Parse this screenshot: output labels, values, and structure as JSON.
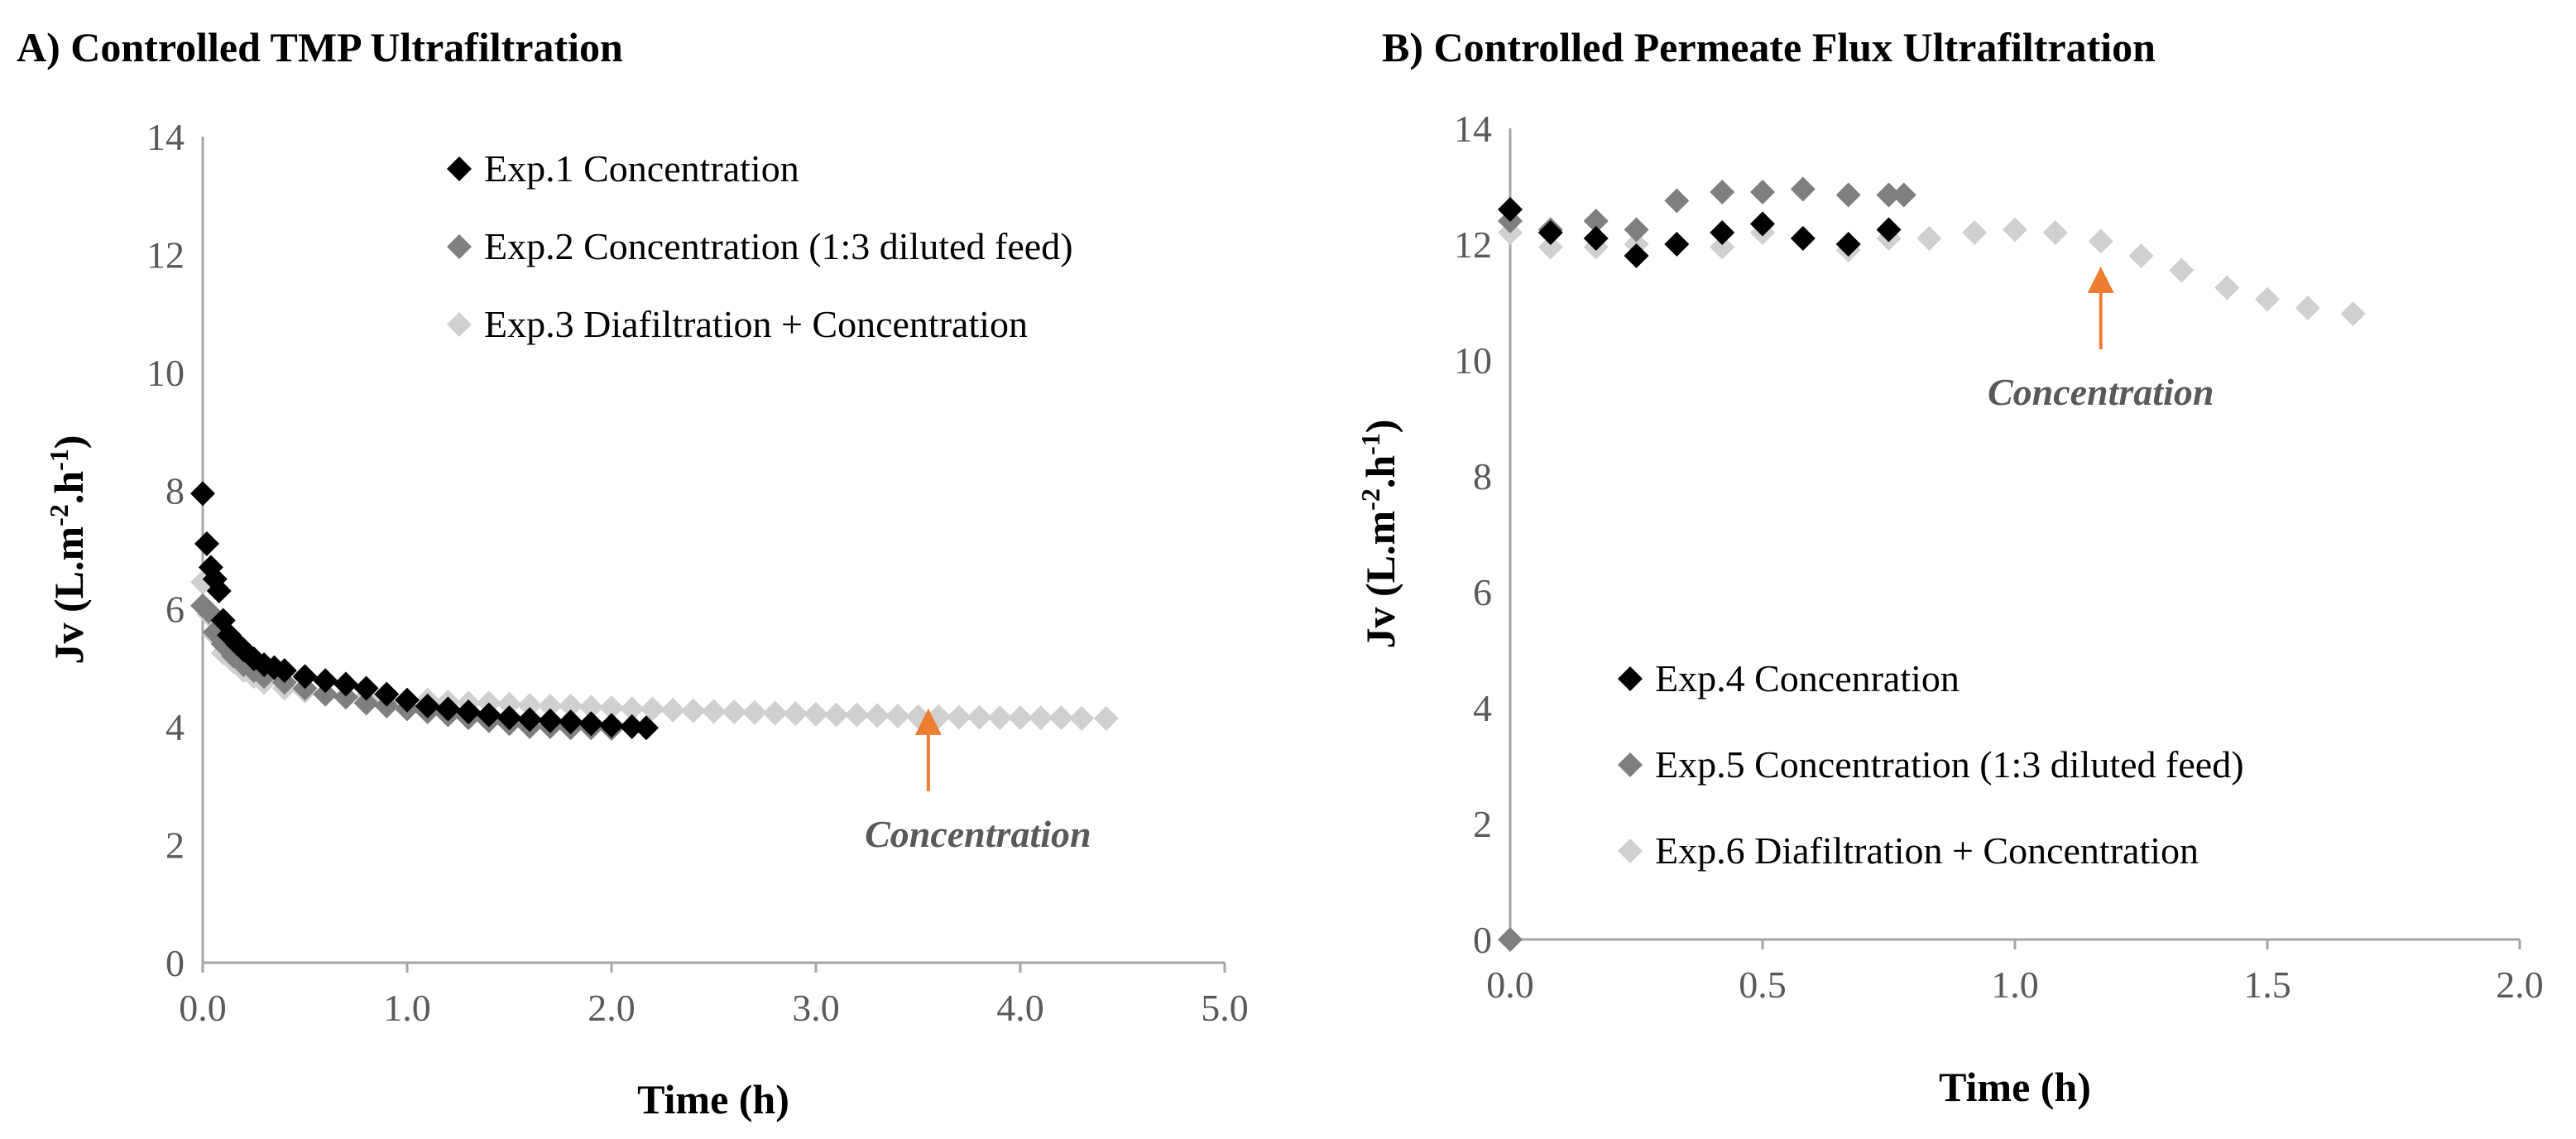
{
  "chart_data": [
    {
      "type": "scatter",
      "title": "A) Controlled TMP Ultrafiltration",
      "xlabel": "Time (h)",
      "ylabel": "Jv (L.m",
      "ylabel_sup1": "-2",
      "ylabel_mid": ".h",
      "ylabel_sup2": "-1",
      "ylabel_end": ")",
      "xlim": [
        0,
        5
      ],
      "ylim": [
        0,
        14
      ],
      "xticks": [
        "0.0",
        "1.0",
        "2.0",
        "3.0",
        "4.0",
        "5.0"
      ],
      "yticks": [
        "0",
        "2",
        "4",
        "6",
        "8",
        "10",
        "12",
        "14"
      ],
      "legend_position": "top-right",
      "annotation": {
        "text": "Concentration",
        "x": 3.55,
        "y": 4.0,
        "color": "#ed7d31"
      },
      "series": [
        {
          "name": "Exp.1 Concentration",
          "color": "#000000",
          "x": [
            0.0,
            0.02,
            0.04,
            0.06,
            0.08,
            0.1,
            0.13,
            0.17,
            0.2,
            0.25,
            0.3,
            0.35,
            0.4,
            0.5,
            0.6,
            0.7,
            0.8,
            0.9,
            1.0,
            1.1,
            1.2,
            1.3,
            1.4,
            1.5,
            1.6,
            1.7,
            1.8,
            1.9,
            2.0,
            2.1,
            2.17
          ],
          "y": [
            7.95,
            7.1,
            6.7,
            6.5,
            6.3,
            5.8,
            5.55,
            5.4,
            5.3,
            5.15,
            5.05,
            5.0,
            4.95,
            4.85,
            4.78,
            4.72,
            4.65,
            4.55,
            4.45,
            4.35,
            4.3,
            4.25,
            4.2,
            4.15,
            4.12,
            4.1,
            4.08,
            4.05,
            4.02,
            4.0,
            3.98
          ]
        },
        {
          "name": "Exp.2 Concentration (1:3 diluted feed)",
          "color": "#7f7f7f",
          "x": [
            0.0,
            0.03,
            0.06,
            0.1,
            0.15,
            0.2,
            0.25,
            0.3,
            0.4,
            0.5,
            0.6,
            0.7,
            0.8,
            0.9,
            1.0,
            1.1,
            1.2,
            1.3,
            1.4,
            1.5,
            1.6,
            1.7,
            1.8,
            1.9,
            2.0
          ],
          "y": [
            6.05,
            5.95,
            5.6,
            5.4,
            5.2,
            5.05,
            4.95,
            4.85,
            4.75,
            4.65,
            4.55,
            4.5,
            4.4,
            4.35,
            4.3,
            4.25,
            4.2,
            4.15,
            4.1,
            4.05,
            4.0,
            4.0,
            3.98,
            3.98,
            3.97
          ]
        },
        {
          "name": "Exp.3 Diafiltration + Concentration",
          "color": "#d0d0d0",
          "x": [
            0.0,
            0.03,
            0.06,
            0.1,
            0.15,
            0.2,
            0.25,
            0.3,
            0.4,
            0.5,
            0.6,
            0.7,
            0.8,
            0.9,
            1.0,
            1.1,
            1.2,
            1.3,
            1.4,
            1.5,
            1.6,
            1.7,
            1.8,
            1.9,
            2.0,
            2.1,
            2.2,
            2.3,
            2.4,
            2.5,
            2.6,
            2.7,
            2.8,
            2.9,
            3.0,
            3.1,
            3.2,
            3.3,
            3.4,
            3.5,
            3.6,
            3.7,
            3.8,
            3.9,
            4.0,
            4.1,
            4.2,
            4.3,
            4.42
          ],
          "y": [
            6.45,
            5.9,
            5.55,
            5.25,
            5.1,
            4.95,
            4.85,
            4.75,
            4.65,
            4.6,
            4.55,
            4.5,
            4.5,
            4.45,
            4.45,
            4.45,
            4.42,
            4.4,
            4.4,
            4.38,
            4.36,
            4.35,
            4.35,
            4.33,
            4.32,
            4.3,
            4.3,
            4.28,
            4.27,
            4.26,
            4.25,
            4.24,
            4.23,
            4.22,
            4.21,
            4.2,
            4.2,
            4.19,
            4.18,
            4.17,
            4.17,
            4.16,
            4.16,
            4.15,
            4.15,
            4.15,
            4.15,
            4.14,
            4.14
          ]
        }
      ]
    },
    {
      "type": "scatter",
      "title": "B) Controlled Permeate Flux Ultrafiltration",
      "xlabel": "Time (h)",
      "ylabel": "Jv (L.m",
      "ylabel_sup1": "-2",
      "ylabel_mid": ".h",
      "ylabel_sup2": "-1",
      "ylabel_end": ")",
      "xlim": [
        0,
        2
      ],
      "ylim": [
        0,
        14
      ],
      "xticks": [
        "0.0",
        "0.5",
        "1.0",
        "1.5",
        "2.0"
      ],
      "yticks": [
        "0",
        "2",
        "4",
        "6",
        "8",
        "10",
        "12",
        "14"
      ],
      "legend_position": "bottom-left",
      "annotation": {
        "text": "Concentration",
        "x": 1.17,
        "y": 11.3,
        "color": "#ed7d31"
      },
      "series": [
        {
          "name": "Exp.4 Concenration",
          "color": "#000000",
          "x": [
            0.0,
            0.08,
            0.17,
            0.25,
            0.33,
            0.42,
            0.5,
            0.58,
            0.67,
            0.75
          ],
          "y": [
            12.6,
            12.2,
            12.1,
            11.8,
            12.0,
            12.2,
            12.35,
            12.1,
            12.0,
            12.25
          ]
        },
        {
          "name": "Exp.5 Concentration (1:3 diluted feed)",
          "color": "#7f7f7f",
          "x": [
            0.0,
            0.0,
            0.08,
            0.17,
            0.25,
            0.33,
            0.42,
            0.5,
            0.58,
            0.67,
            0.75,
            0.78
          ],
          "y": [
            0.0,
            12.4,
            12.25,
            12.4,
            12.25,
            12.75,
            12.9,
            12.9,
            12.95,
            12.85,
            12.85,
            12.85
          ]
        },
        {
          "name": "Exp.6 Diafiltration + Concentration",
          "color": "#d0d0d0",
          "x": [
            0.0,
            0.08,
            0.17,
            0.25,
            0.33,
            0.42,
            0.5,
            0.58,
            0.67,
            0.75,
            0.83,
            0.92,
            1.0,
            1.08,
            1.17,
            1.25,
            1.33,
            1.42,
            1.5,
            1.58,
            1.67
          ],
          "y": [
            12.2,
            11.95,
            11.95,
            12.0,
            12.0,
            11.95,
            12.2,
            12.1,
            11.9,
            12.1,
            12.1,
            12.2,
            12.25,
            12.2,
            12.05,
            11.8,
            11.55,
            11.25,
            11.05,
            10.9,
            10.8
          ]
        }
      ]
    }
  ]
}
